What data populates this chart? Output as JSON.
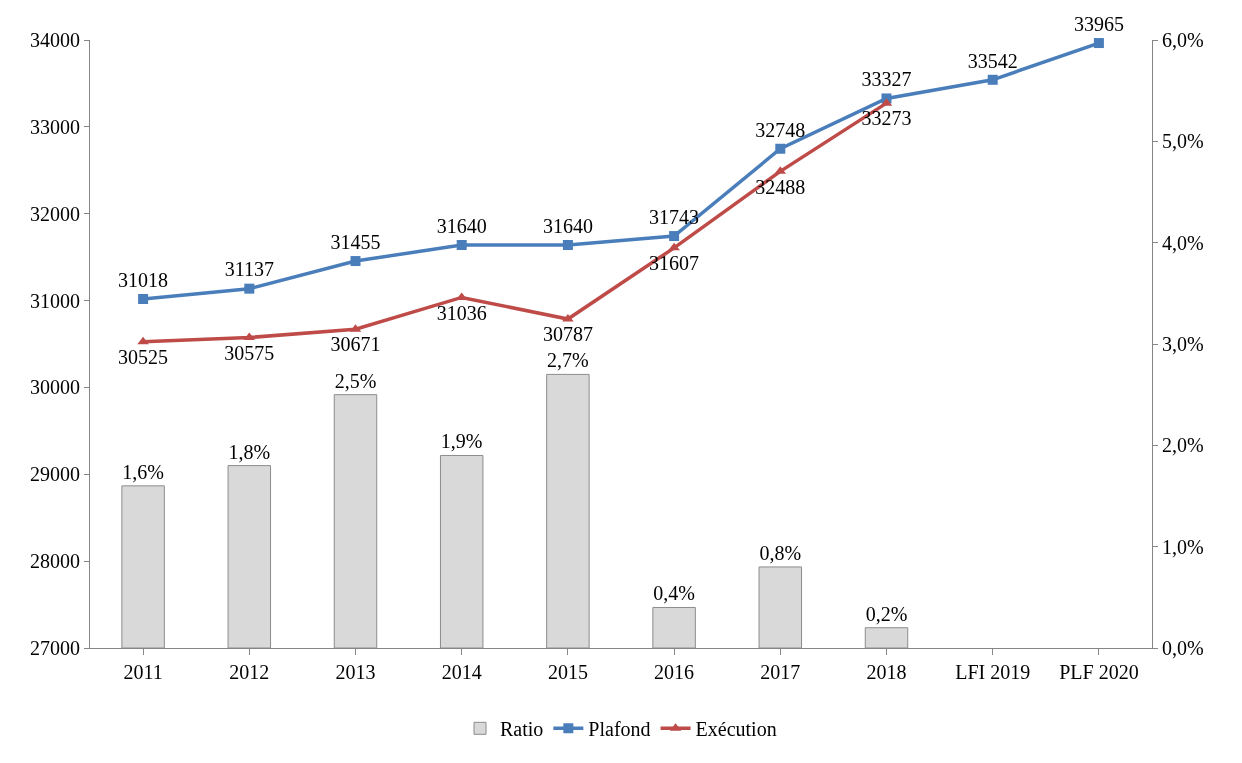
{
  "chart_data": {
    "type": "line",
    "categories": [
      "2011",
      "2012",
      "2013",
      "2014",
      "2015",
      "2016",
      "2017",
      "2018",
      "LFI 2019",
      "PLF 2020"
    ],
    "series": [
      {
        "name": "Ratio",
        "type": "bar",
        "axis": "y2",
        "color": "#d9d9d9",
        "values": [
          1.6,
          1.8,
          2.5,
          1.9,
          2.7,
          0.4,
          0.8,
          0.2,
          null,
          null
        ],
        "value_labels": [
          "1,6%",
          "1,8%",
          "2,5%",
          "1,9%",
          "2,7%",
          "0,4%",
          "0,8%",
          "0,2%",
          null,
          null
        ]
      },
      {
        "name": "Plafond",
        "color": "#4a7ebb",
        "marker": "square",
        "data_labels": true,
        "values": [
          31018,
          31137,
          31455,
          31640,
          31640,
          31743,
          32748,
          33327,
          33542,
          33965
        ]
      },
      {
        "name": "Exécution",
        "color": "#be4b48",
        "marker": "triangle",
        "data_labels": true,
        "values": [
          30525,
          30575,
          30671,
          31036,
          30787,
          31607,
          32488,
          33273,
          null,
          null
        ]
      }
    ],
    "ylim": [
      27000,
      34000
    ],
    "yticks": [
      27000,
      28000,
      29000,
      30000,
      31000,
      32000,
      33000,
      34000
    ],
    "y2lim": [
      0,
      6
    ],
    "y2ticks": [
      {
        "value": 0,
        "label": "0,0%"
      },
      {
        "value": 1,
        "label": "1,0%"
      },
      {
        "value": 2,
        "label": "2,0%"
      },
      {
        "value": 3,
        "label": "3,0%"
      },
      {
        "value": 4,
        "label": "4,0%"
      },
      {
        "value": 5,
        "label": "5,0%"
      },
      {
        "value": 6,
        "label": "6,0%"
      }
    ],
    "grid": false,
    "legend": "bottom",
    "line_style": "solid"
  }
}
